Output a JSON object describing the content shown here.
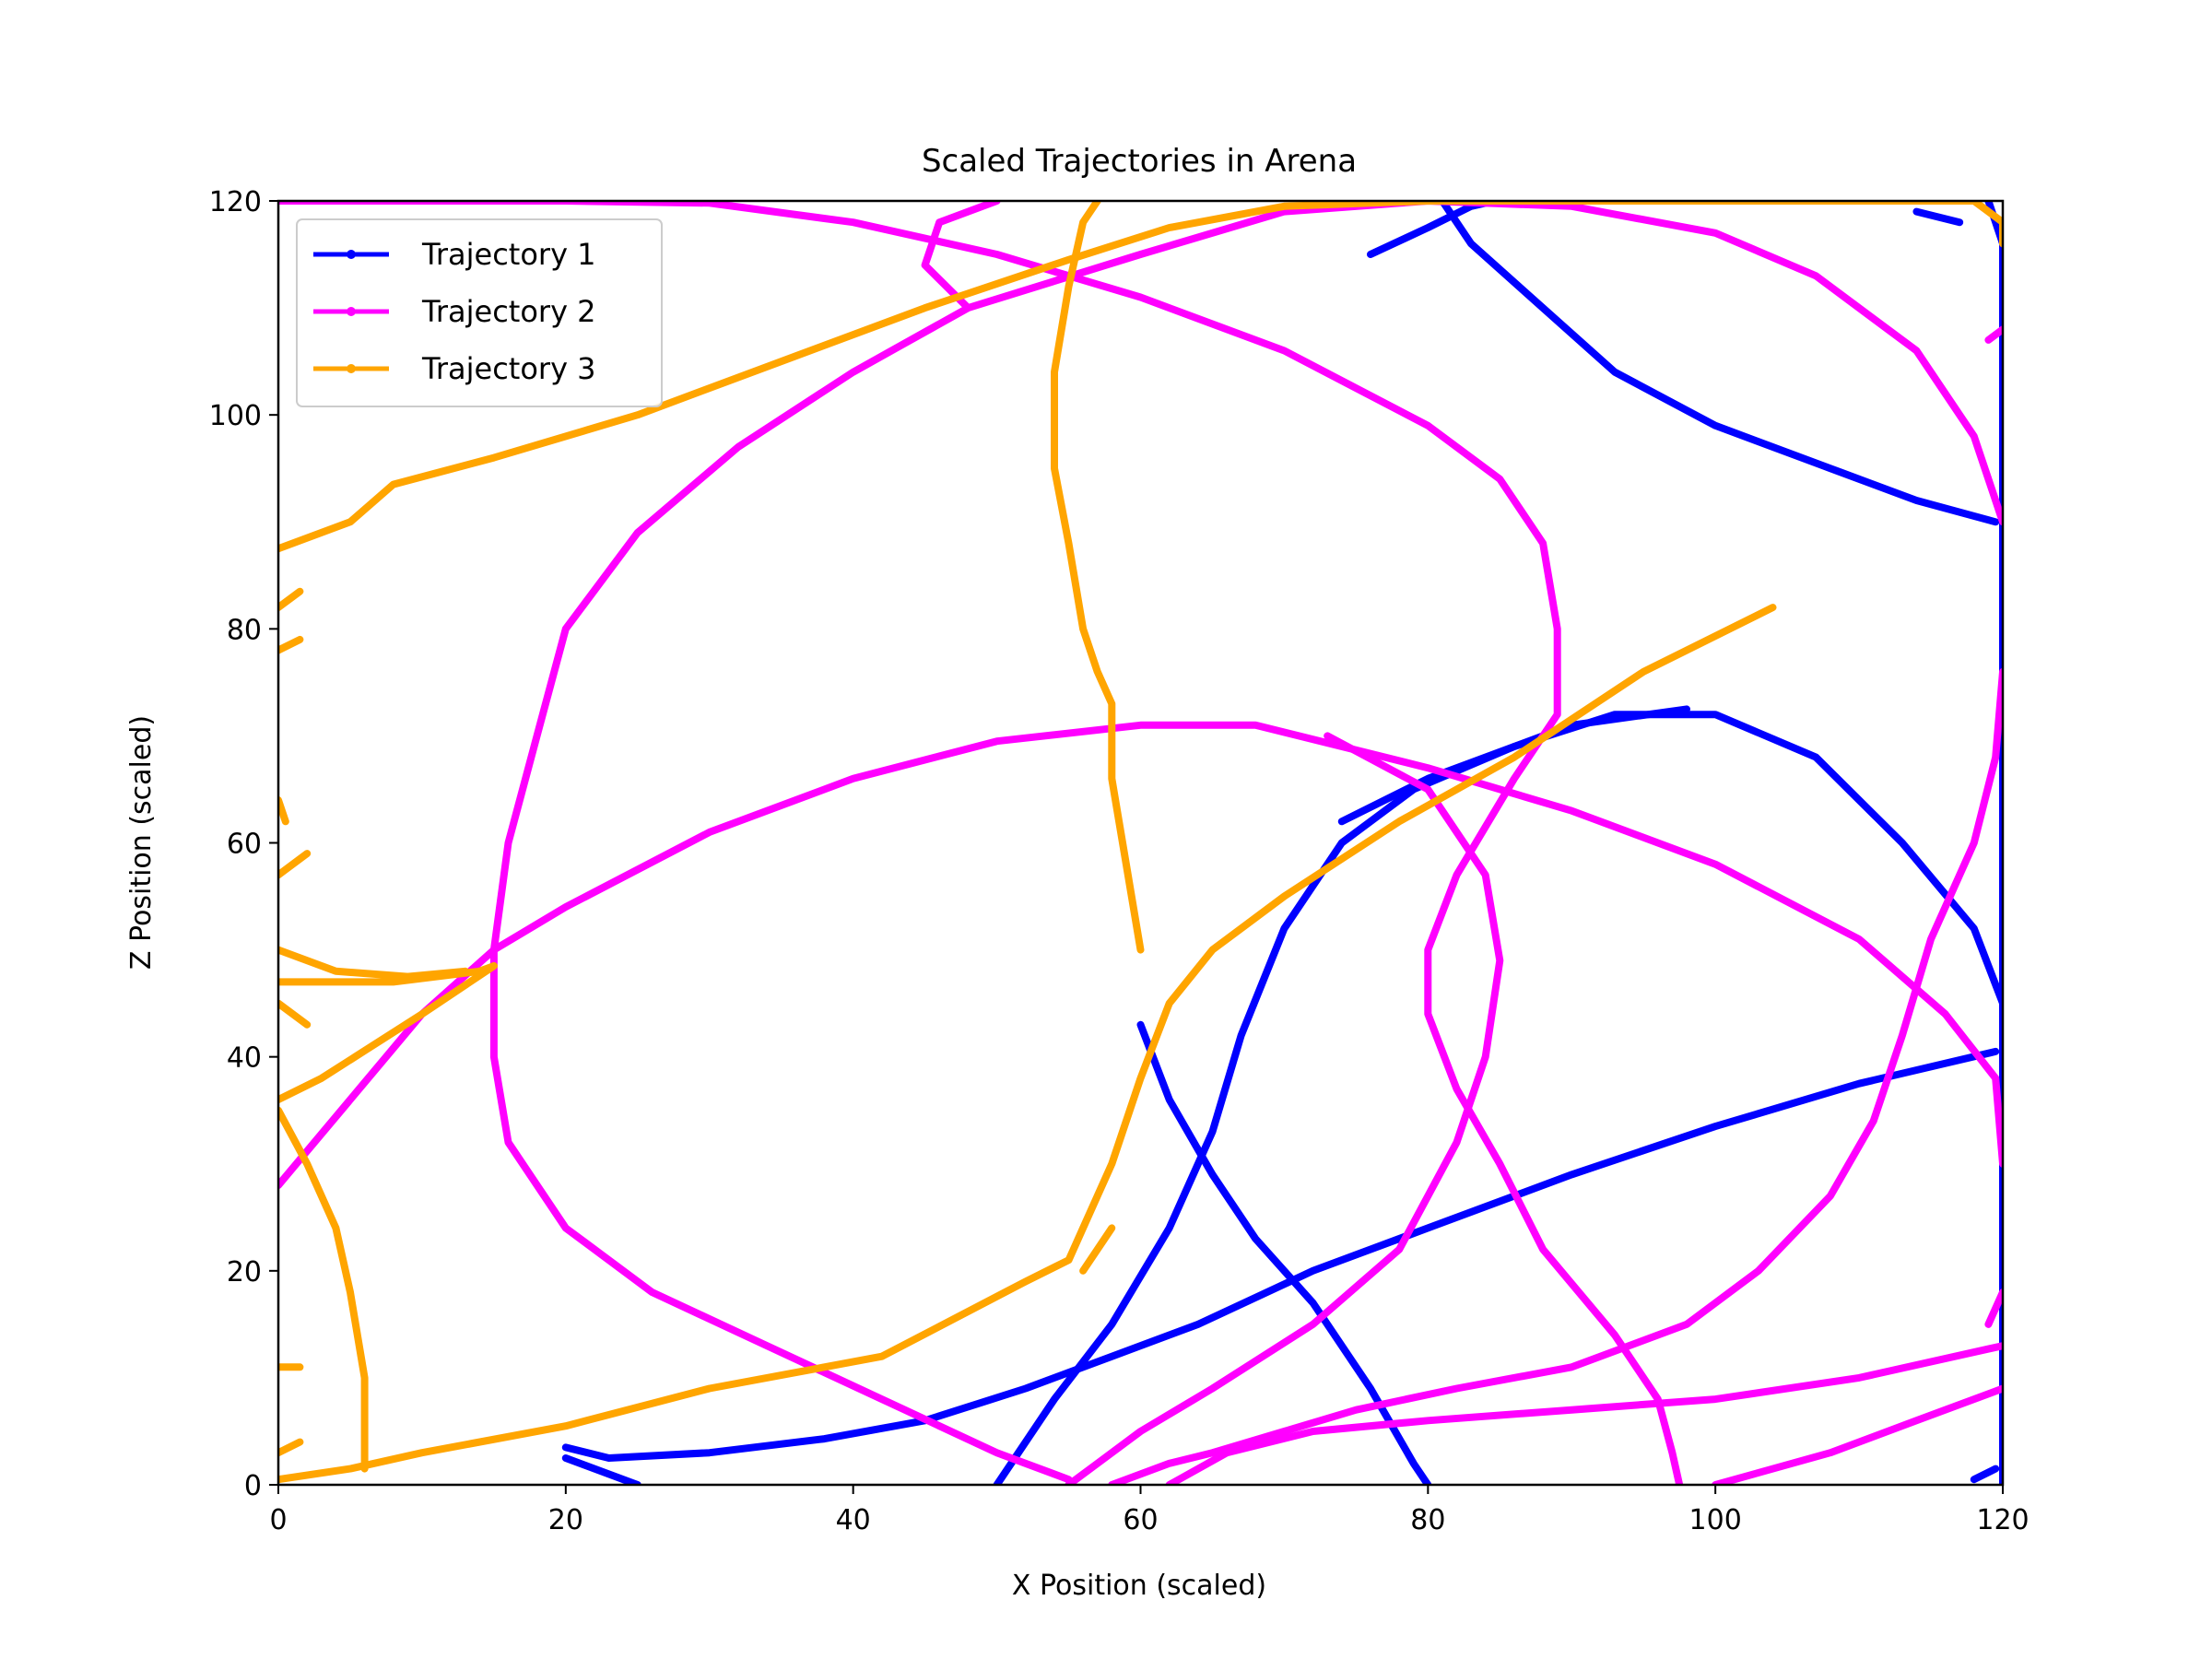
{
  "chart_data": {
    "type": "line",
    "title": "Scaled Trajectories in Arena",
    "xlabel": "X Position (scaled)",
    "ylabel": "Z Position (scaled)",
    "xlim": [
      0,
      120
    ],
    "ylim": [
      0,
      120
    ],
    "xticks": [
      0,
      20,
      40,
      60,
      80,
      100,
      120
    ],
    "yticks": [
      0,
      20,
      40,
      60,
      80,
      100,
      120
    ],
    "grid": false,
    "legend_position": "top-left",
    "series": [
      {
        "name": "Trajectory 1",
        "color": "#0000ff",
        "segments": [
          [
            [
              76,
              115
            ],
            [
              80,
              117.5
            ],
            [
              83,
              119.5
            ],
            [
              84,
              119.8
            ]
          ],
          [
            [
              81,
              120
            ],
            [
              83,
              116
            ],
            [
              88,
              110
            ],
            [
              93,
              104
            ],
            [
              100,
              99
            ],
            [
              108,
              95
            ],
            [
              114,
              92
            ],
            [
              119.5,
              90
            ]
          ],
          [
            [
              60,
              43
            ],
            [
              62,
              36
            ],
            [
              65,
              29
            ],
            [
              68,
              23
            ],
            [
              72,
              17
            ],
            [
              76,
              9
            ],
            [
              79,
              2
            ],
            [
              80,
              0
            ]
          ],
          [
            [
              50,
              0
            ],
            [
              54,
              8
            ],
            [
              58,
              15
            ],
            [
              62,
              24
            ],
            [
              65,
              33
            ],
            [
              67,
              42
            ],
            [
              70,
              52
            ],
            [
              74,
              60
            ],
            [
              79,
              65
            ],
            [
              86,
              69
            ],
            [
              93,
              72
            ],
            [
              100,
              72
            ],
            [
              107,
              68
            ],
            [
              113,
              60
            ],
            [
              118,
              52
            ],
            [
              120,
              45
            ]
          ],
          [
            [
              74,
              62
            ],
            [
              80,
              66
            ],
            [
              90,
              71
            ],
            [
              98,
              72.5
            ]
          ],
          [
            [
              20,
              3.5
            ],
            [
              23,
              2.5
            ],
            [
              30,
              3
            ],
            [
              38,
              4.3
            ],
            [
              45,
              6
            ],
            [
              52,
              9
            ],
            [
              58,
              12
            ],
            [
              64,
              15
            ],
            [
              72,
              20
            ],
            [
              80,
              24
            ],
            [
              90,
              29
            ],
            [
              100,
              33.5
            ],
            [
              110,
              37.5
            ],
            [
              119.5,
              40.5
            ]
          ],
          [
            [
              20,
              2.5
            ],
            [
              25,
              0
            ]
          ],
          [
            [
              118,
              0.5
            ],
            [
              119.5,
              1.5
            ]
          ],
          [
            [
              119,
              120
            ],
            [
              120,
              116
            ],
            [
              120,
              104
            ],
            [
              120,
              92
            ],
            [
              120,
              80
            ],
            [
              120,
              68
            ],
            [
              120,
              56
            ],
            [
              120,
              44
            ],
            [
              120,
              32
            ],
            [
              120,
              20
            ],
            [
              120,
              8
            ],
            [
              120,
              0
            ]
          ],
          [
            [
              114,
              119
            ],
            [
              117,
              118
            ]
          ]
        ]
      },
      {
        "name": "Trajectory 2",
        "color": "#ff00ff",
        "segments": [
          [
            [
              0,
              120
            ],
            [
              10,
              120
            ],
            [
              20,
              120
            ],
            [
              30,
              119.8
            ],
            [
              40,
              118
            ],
            [
              50,
              115
            ],
            [
              60,
              111
            ],
            [
              70,
              106
            ],
            [
              80,
              99
            ],
            [
              85,
              94
            ],
            [
              88,
              88
            ],
            [
              89,
              80
            ],
            [
              89,
              72
            ],
            [
              86,
              66
            ],
            [
              82,
              57
            ],
            [
              80,
              50
            ],
            [
              80,
              44
            ],
            [
              82,
              37
            ],
            [
              85,
              30
            ],
            [
              88,
              22
            ],
            [
              93,
              14
            ],
            [
              96,
              8
            ],
            [
              97,
              3
            ],
            [
              97.5,
              0
            ]
          ],
          [
            [
              0,
              28
            ],
            [
              5,
              36
            ],
            [
              10,
              44
            ],
            [
              15,
              50
            ],
            [
              20,
              54
            ],
            [
              30,
              61
            ],
            [
              40,
              66
            ],
            [
              50,
              69.5
            ],
            [
              60,
              71
            ],
            [
              68,
              71
            ],
            [
              80,
              67
            ],
            [
              90,
              63
            ],
            [
              100,
              58
            ],
            [
              110,
              51
            ],
            [
              116,
              44
            ],
            [
              119.5,
              38
            ],
            [
              120,
              30
            ]
          ],
          [
            [
              58,
              0
            ],
            [
              60,
              1
            ],
            [
              62,
              2
            ],
            [
              65,
              3
            ],
            [
              70,
              5
            ],
            [
              75,
              7
            ],
            [
              82,
              9
            ],
            [
              90,
              11
            ],
            [
              98,
              15
            ],
            [
              103,
              20
            ],
            [
              108,
              27
            ],
            [
              111,
              34
            ],
            [
              113,
              42
            ],
            [
              115,
              51
            ],
            [
              118,
              60
            ],
            [
              119.5,
              68
            ],
            [
              120,
              76
            ]
          ],
          [
            [
              55,
              0.5
            ],
            [
              50,
              3
            ],
            [
              42,
              8
            ],
            [
              34,
              13
            ],
            [
              26,
              18
            ],
            [
              20,
              24
            ],
            [
              16,
              32
            ],
            [
              15,
              40
            ],
            [
              15,
              50
            ],
            [
              16,
              60
            ],
            [
              18,
              70
            ],
            [
              20,
              80
            ],
            [
              25,
              89
            ],
            [
              32,
              97
            ],
            [
              40,
              104
            ],
            [
              48,
              110
            ],
            [
              60,
              115
            ],
            [
              70,
              119
            ],
            [
              80,
              120
            ],
            [
              90,
              119.5
            ],
            [
              100,
              117
            ],
            [
              107,
              113
            ],
            [
              114,
              106
            ],
            [
              118,
              98
            ],
            [
              120,
              90
            ]
          ],
          [
            [
              48,
              110
            ],
            [
              45,
              114
            ],
            [
              46,
              118
            ],
            [
              50,
              120
            ]
          ],
          [
            [
              73,
              70
            ],
            [
              80,
              65
            ],
            [
              84,
              57
            ],
            [
              85,
              49
            ],
            [
              84,
              40
            ],
            [
              82,
              32
            ],
            [
              78,
              22
            ],
            [
              72,
              15
            ],
            [
              65,
              9
            ],
            [
              60,
              5
            ],
            [
              57,
              2
            ],
            [
              55,
              0
            ]
          ],
          [
            [
              62,
              0
            ],
            [
              66,
              3
            ],
            [
              72,
              5
            ],
            [
              80,
              6
            ],
            [
              90,
              7
            ],
            [
              100,
              8
            ],
            [
              110,
              10
            ],
            [
              120,
              13
            ]
          ],
          [
            [
              100,
              0
            ],
            [
              108,
              3
            ],
            [
              114,
              6
            ],
            [
              120,
              9
            ]
          ],
          [
            [
              119,
              107
            ],
            [
              120,
              108
            ]
          ],
          [
            [
              119,
              15
            ],
            [
              120,
              18
            ]
          ]
        ]
      },
      {
        "name": "Trajectory 3",
        "color": "#ffa500",
        "segments": [
          [
            [
              0,
              87.5
            ],
            [
              5,
              90
            ],
            [
              8,
              93.5
            ],
            [
              15,
              96
            ],
            [
              25,
              100
            ],
            [
              35,
              105
            ],
            [
              45,
              110
            ],
            [
              55,
              114.5
            ],
            [
              62,
              117.5
            ],
            [
              70,
              119.5
            ],
            [
              80,
              120
            ],
            [
              90,
              120
            ],
            [
              100,
              120
            ],
            [
              110,
              120
            ],
            [
              118,
              120
            ],
            [
              120,
              118
            ],
            [
              120,
              116
            ]
          ],
          [
            [
              104,
              82
            ],
            [
              95,
              76
            ],
            [
              86,
              68
            ],
            [
              78,
              62
            ],
            [
              70,
              55
            ],
            [
              65,
              50
            ],
            [
              62,
              45
            ],
            [
              60,
              38
            ],
            [
              58,
              30
            ],
            [
              56,
              24
            ],
            [
              55,
              21
            ],
            [
              52,
              19
            ],
            [
              42,
              12
            ],
            [
              30,
              9
            ],
            [
              20,
              5.5
            ],
            [
              10,
              3
            ],
            [
              5,
              1.5
            ],
            [
              0,
              0.5
            ]
          ],
          [
            [
              0,
              47
            ],
            [
              3,
              47
            ],
            [
              8,
              47
            ],
            [
              14,
              48
            ],
            [
              15,
              48.5
            ]
          ],
          [
            [
              0,
              50
            ],
            [
              4,
              48
            ],
            [
              9,
              47.5
            ],
            [
              13,
              48
            ]
          ],
          [
            [
              0,
              36
            ],
            [
              3,
              38
            ],
            [
              10,
              44
            ],
            [
              15,
              48.5
            ]
          ],
          [
            [
              0,
              35
            ],
            [
              2,
              30
            ],
            [
              4,
              24
            ],
            [
              5,
              18
            ],
            [
              6,
              10
            ],
            [
              6,
              4
            ],
            [
              6,
              1.5
            ]
          ],
          [
            [
              60,
              50
            ],
            [
              59,
              58
            ],
            [
              58,
              66
            ],
            [
              58,
              73
            ],
            [
              57,
              76
            ],
            [
              56,
              80
            ],
            [
              55,
              88
            ],
            [
              54,
              95
            ],
            [
              54,
              104
            ],
            [
              55,
              112
            ],
            [
              56,
              118
            ],
            [
              57,
              120
            ]
          ],
          [
            [
              56,
              20
            ],
            [
              58,
              24
            ]
          ],
          [
            [
              0,
              57
            ],
            [
              2,
              59
            ]
          ],
          [
            [
              0,
              78
            ],
            [
              1.5,
              79
            ]
          ],
          [
            [
              0,
              82
            ],
            [
              1.5,
              83.5
            ]
          ],
          [
            [
              0,
              64
            ],
            [
              0.5,
              62
            ]
          ],
          [
            [
              0,
              45
            ],
            [
              2,
              43
            ]
          ],
          [
            [
              0,
              11
            ],
            [
              1.5,
              11
            ]
          ],
          [
            [
              0,
              3
            ],
            [
              1.5,
              4
            ]
          ]
        ]
      }
    ]
  }
}
